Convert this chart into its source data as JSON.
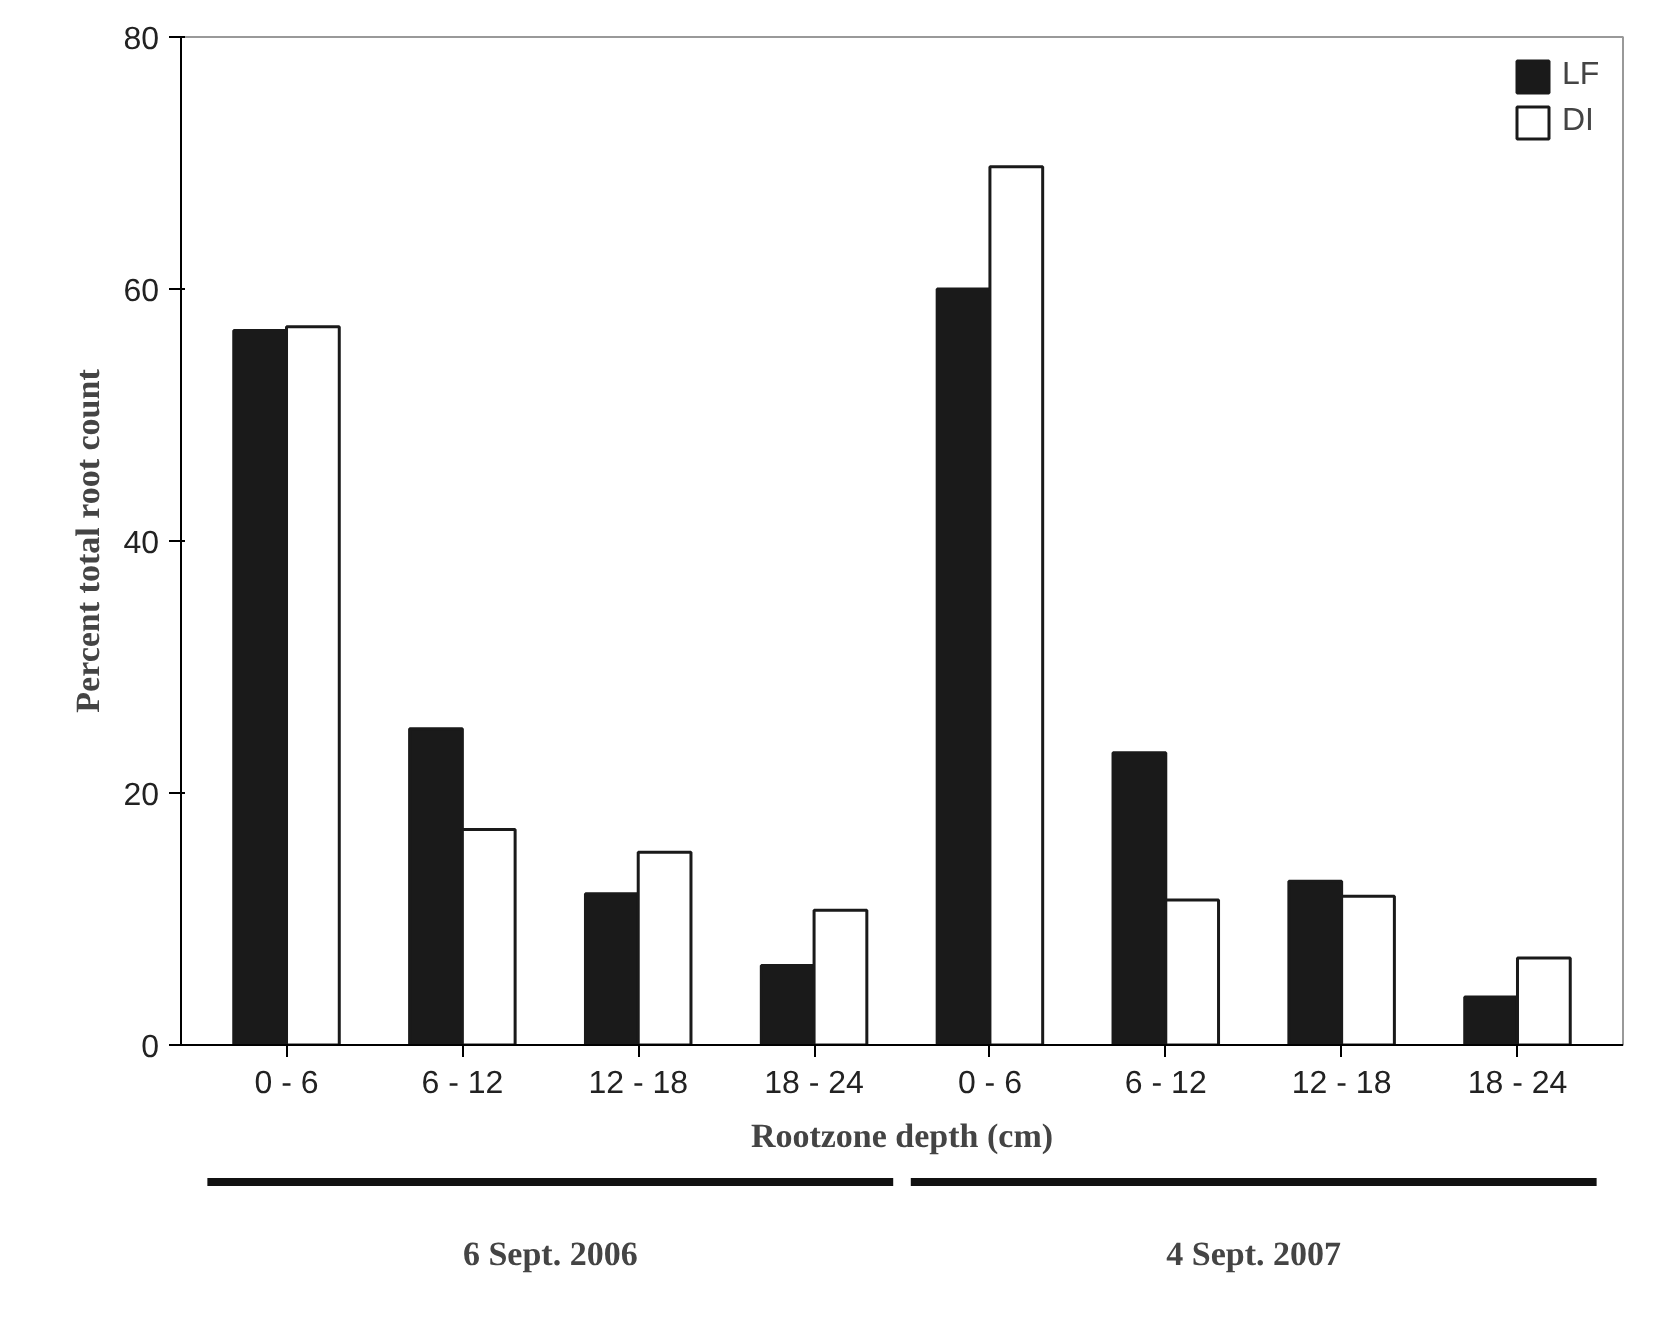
{
  "chart_data": {
    "type": "bar",
    "xlabel": "Rootzone depth (cm)",
    "ylabel": "Percent total root count",
    "categories": [
      "0 - 6",
      "6 - 12",
      "12 - 18",
      "18 - 24",
      "0 - 6",
      "6 - 12",
      "12 - 18",
      "18 - 24"
    ],
    "series": [
      {
        "name": "LF",
        "color": "#1a1a1a",
        "values": [
          56.7,
          25.1,
          12.0,
          6.3,
          60.0,
          23.2,
          13.0,
          3.8
        ]
      },
      {
        "name": "DI",
        "color": "#ffffff",
        "values": [
          57.0,
          17.1,
          15.3,
          10.7,
          69.7,
          11.5,
          11.8,
          6.9
        ]
      }
    ],
    "ylim": [
      0,
      80
    ],
    "yticks": [
      0,
      20,
      40,
      60,
      80
    ],
    "grid": false,
    "legend": "top right",
    "annotations": [
      "6 Sept. 2006",
      "4 Sept. 2007"
    ]
  }
}
